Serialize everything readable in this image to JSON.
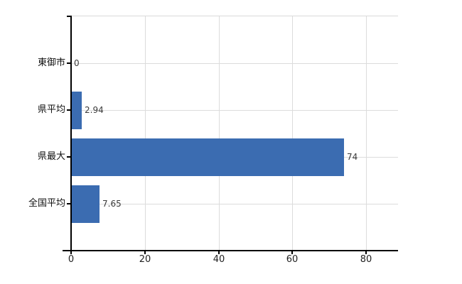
{
  "chart_data": {
    "type": "bar",
    "orientation": "horizontal",
    "title": "",
    "xlabel": "",
    "ylabel": "",
    "categories": [
      "東御市",
      "県平均",
      "県最大",
      "全国平均"
    ],
    "values": [
      0,
      2.94,
      74,
      7.65
    ],
    "value_labels": [
      "0",
      "2.94",
      "74",
      "7.65"
    ],
    "x_ticks": [
      0,
      20,
      40,
      60,
      80
    ],
    "x_tick_labels": [
      "0",
      "20",
      "40",
      "60",
      "80"
    ],
    "xlim": [
      0,
      88.7
    ],
    "grid": "on",
    "legend": "none",
    "bar_color": "#3b6cb1",
    "grid_color": "#dcdcdc",
    "axis_color": "#000000",
    "value_label_color": "#3a3a3a",
    "tick_label_color": "#222222",
    "category_label_color": "#111111"
  }
}
